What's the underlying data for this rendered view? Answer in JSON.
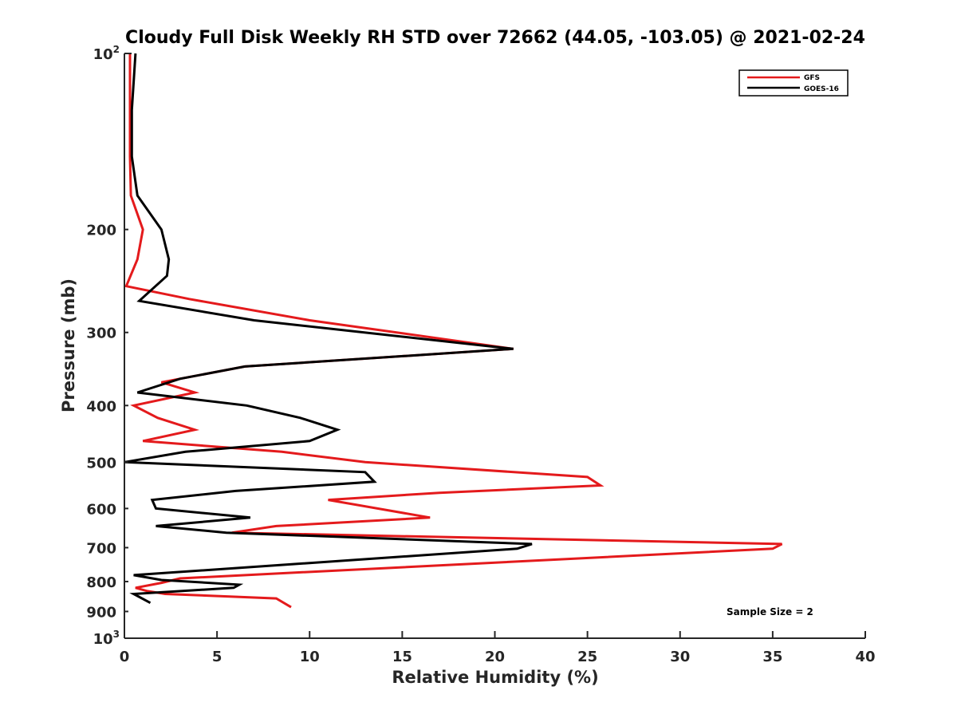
{
  "chart_data": {
    "type": "line",
    "title": "Cloudy Full Disk Weekly RH STD over 72662 (44.05, -103.05) @ 2021-02-24",
    "xlabel": "Relative Humidity (%)",
    "ylabel": "Pressure (mb)",
    "xlim": [
      0,
      40
    ],
    "ylim": [
      100,
      1000
    ],
    "y_scale": "log",
    "y_reversed": true,
    "grid": false,
    "legend_position": "top-right",
    "annotation": "Sample Size = 2",
    "x_ticks": [
      "0",
      "5",
      "10",
      "15",
      "20",
      "25",
      "30",
      "35",
      "40"
    ],
    "y_ticks": [
      {
        "value": 100,
        "base": "10",
        "exp": "2"
      },
      {
        "value": 200,
        "base": "200",
        "exp": ""
      },
      {
        "value": 300,
        "base": "300",
        "exp": ""
      },
      {
        "value": 400,
        "base": "400",
        "exp": ""
      },
      {
        "value": 500,
        "base": "500",
        "exp": ""
      },
      {
        "value": 600,
        "base": "600",
        "exp": ""
      },
      {
        "value": 700,
        "base": "700",
        "exp": ""
      },
      {
        "value": 800,
        "base": "800",
        "exp": ""
      },
      {
        "value": 900,
        "base": "900",
        "exp": ""
      },
      {
        "value": 1000,
        "base": "10",
        "exp": "3"
      }
    ],
    "series": [
      {
        "name": "GFS",
        "color": "#e41a1c",
        "points": [
          [
            0.3,
            100
          ],
          [
            0.3,
            125
          ],
          [
            0.3,
            150
          ],
          [
            0.35,
            175
          ],
          [
            1.0,
            200
          ],
          [
            0.7,
            225
          ],
          [
            0.1,
            250
          ],
          [
            3.5,
            263
          ],
          [
            10.0,
            286
          ],
          [
            21.0,
            320
          ],
          [
            6.5,
            343
          ],
          [
            2.0,
            365
          ],
          [
            3.8,
            380
          ],
          [
            0.5,
            400
          ],
          [
            1.8,
            420
          ],
          [
            3.8,
            440
          ],
          [
            1.0,
            460
          ],
          [
            8.5,
            480
          ],
          [
            13.0,
            500
          ],
          [
            25.0,
            530
          ],
          [
            25.7,
            548
          ],
          [
            17.0,
            564
          ],
          [
            11.0,
            580
          ],
          [
            16.5,
            622
          ],
          [
            8.2,
            643
          ],
          [
            5.8,
            660
          ],
          [
            35.5,
            690
          ],
          [
            35.0,
            703
          ],
          [
            3.0,
            790
          ],
          [
            2.0,
            804
          ],
          [
            0.6,
            820
          ],
          [
            1.2,
            830
          ],
          [
            2.2,
            840
          ],
          [
            8.2,
            855
          ],
          [
            9.0,
            885
          ]
        ]
      },
      {
        "name": "GOES-16",
        "color": "#000000",
        "points": [
          [
            0.6,
            100
          ],
          [
            0.4,
            125
          ],
          [
            0.4,
            150
          ],
          [
            0.7,
            175
          ],
          [
            2.0,
            200
          ],
          [
            2.4,
            225
          ],
          [
            2.3,
            240
          ],
          [
            0.8,
            265
          ],
          [
            7.0,
            286
          ],
          [
            21.0,
            320
          ],
          [
            6.5,
            343
          ],
          [
            3.0,
            360
          ],
          [
            0.7,
            380
          ],
          [
            6.6,
            400
          ],
          [
            9.5,
            420
          ],
          [
            11.5,
            440
          ],
          [
            10.0,
            460
          ],
          [
            3.3,
            480
          ],
          [
            0.0,
            500
          ],
          [
            13.0,
            520
          ],
          [
            13.5,
            540
          ],
          [
            6.0,
            560
          ],
          [
            1.5,
            580
          ],
          [
            1.7,
            600
          ],
          [
            6.8,
            622
          ],
          [
            1.7,
            643
          ],
          [
            5.5,
            660
          ],
          [
            22.0,
            690
          ],
          [
            21.2,
            703
          ],
          [
            0.5,
            780
          ],
          [
            2.0,
            795
          ],
          [
            6.2,
            810
          ],
          [
            5.9,
            820
          ],
          [
            0.5,
            840
          ],
          [
            1.4,
            870
          ]
        ]
      }
    ]
  }
}
